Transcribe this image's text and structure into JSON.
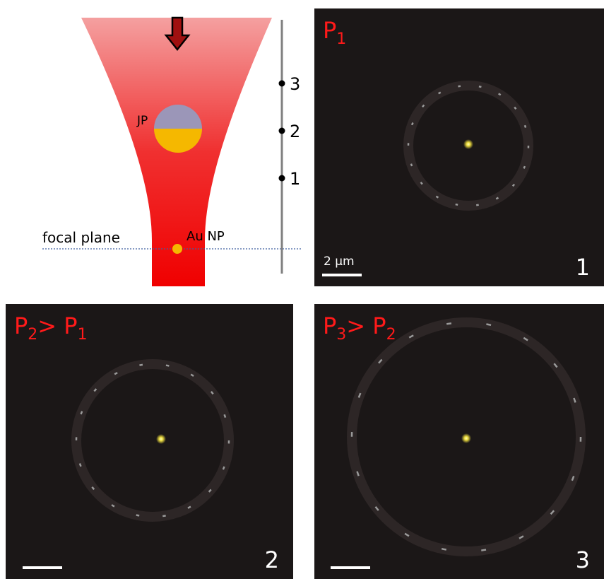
{
  "diagram": {
    "labels": {
      "particle": "JP",
      "nanoparticle": "Au NP",
      "plane": "focal plane"
    },
    "positions": [
      "3",
      "2",
      "1"
    ]
  },
  "panels": [
    {
      "label": [
        {
          "text": "P"
        },
        {
          "text": "1",
          "sub": true
        }
      ],
      "scale_bar": "2 µm",
      "number": "1"
    },
    {
      "label": [
        {
          "text": "P"
        },
        {
          "text": "2",
          "sub": true
        },
        {
          "text": "> P"
        },
        {
          "text": "1",
          "sub": true
        }
      ],
      "number": "2"
    },
    {
      "label": [
        {
          "text": "P"
        },
        {
          "text": "3",
          "sub": true
        },
        {
          "text": "> P"
        },
        {
          "text": "2",
          "sub": true
        }
      ],
      "number": "3"
    }
  ]
}
